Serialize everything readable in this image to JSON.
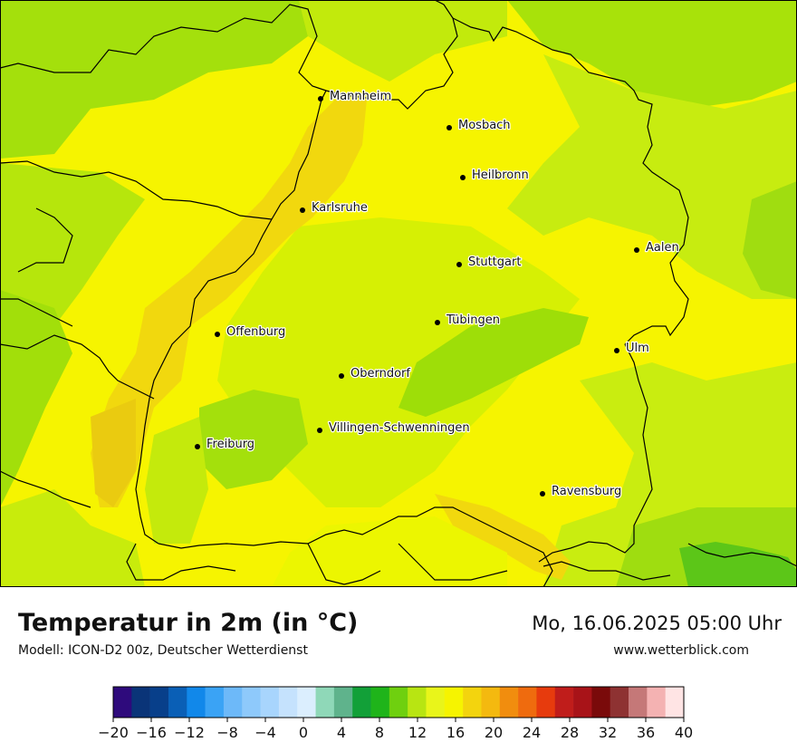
{
  "header": {
    "title": "Temperatur in 2m (in °C)",
    "subtitle": "Modell: ICON-D2 00z, Deutscher Wetterdienst",
    "datetime": "Mo, 16.06.2025 05:00 Uhr",
    "site": "www.wetterblick.com"
  },
  "cities": [
    {
      "name": "Mannheim"
    },
    {
      "name": "Mosbach"
    },
    {
      "name": "Heilbronn"
    },
    {
      "name": "Karlsruhe"
    },
    {
      "name": "Aalen"
    },
    {
      "name": "Stuttgart"
    },
    {
      "name": "Offenburg"
    },
    {
      "name": "Tübingen"
    },
    {
      "name": "Ulm"
    },
    {
      "name": "Oberndorf"
    },
    {
      "name": "Villingen-Schwenningen"
    },
    {
      "name": "Freiburg"
    },
    {
      "name": "Ravensburg"
    }
  ],
  "legend": {
    "min": -20,
    "max": 40,
    "step": 2,
    "colors": [
      "#2e0a7c",
      "#0a3478",
      "#083f8a",
      "#0a5fb6",
      "#1188ea",
      "#3aa3f5",
      "#6db9f9",
      "#8ec9fb",
      "#a8d5fd",
      "#c5e2fd",
      "#dbeefe",
      "#8fd8b8",
      "#5fb38c",
      "#12a038",
      "#1fb41a",
      "#6fd00f",
      "#b8e512",
      "#e9f51a",
      "#f6f400",
      "#f3d40e",
      "#f4b90f",
      "#f18d0e",
      "#ef6b0e",
      "#e73b0d",
      "#c01d1b",
      "#a81318",
      "#7a0a0a",
      "#8e3232",
      "#c57878",
      "#f4b2b2",
      "#ffe4e4"
    ],
    "tick_labels": [
      "−20",
      "−16",
      "−12",
      "−8",
      "−4",
      "0",
      "4",
      "8",
      "12",
      "16",
      "20",
      "24",
      "28",
      "32",
      "36",
      "40"
    ]
  },
  "map_colors": {
    "warm": "#ecf600",
    "yellow": "#f6f400",
    "orange": "#f1d80e",
    "green_light": "#cdee0c",
    "green": "#a2e007",
    "green_dark": "#6ccc14",
    "border": "#000000"
  }
}
